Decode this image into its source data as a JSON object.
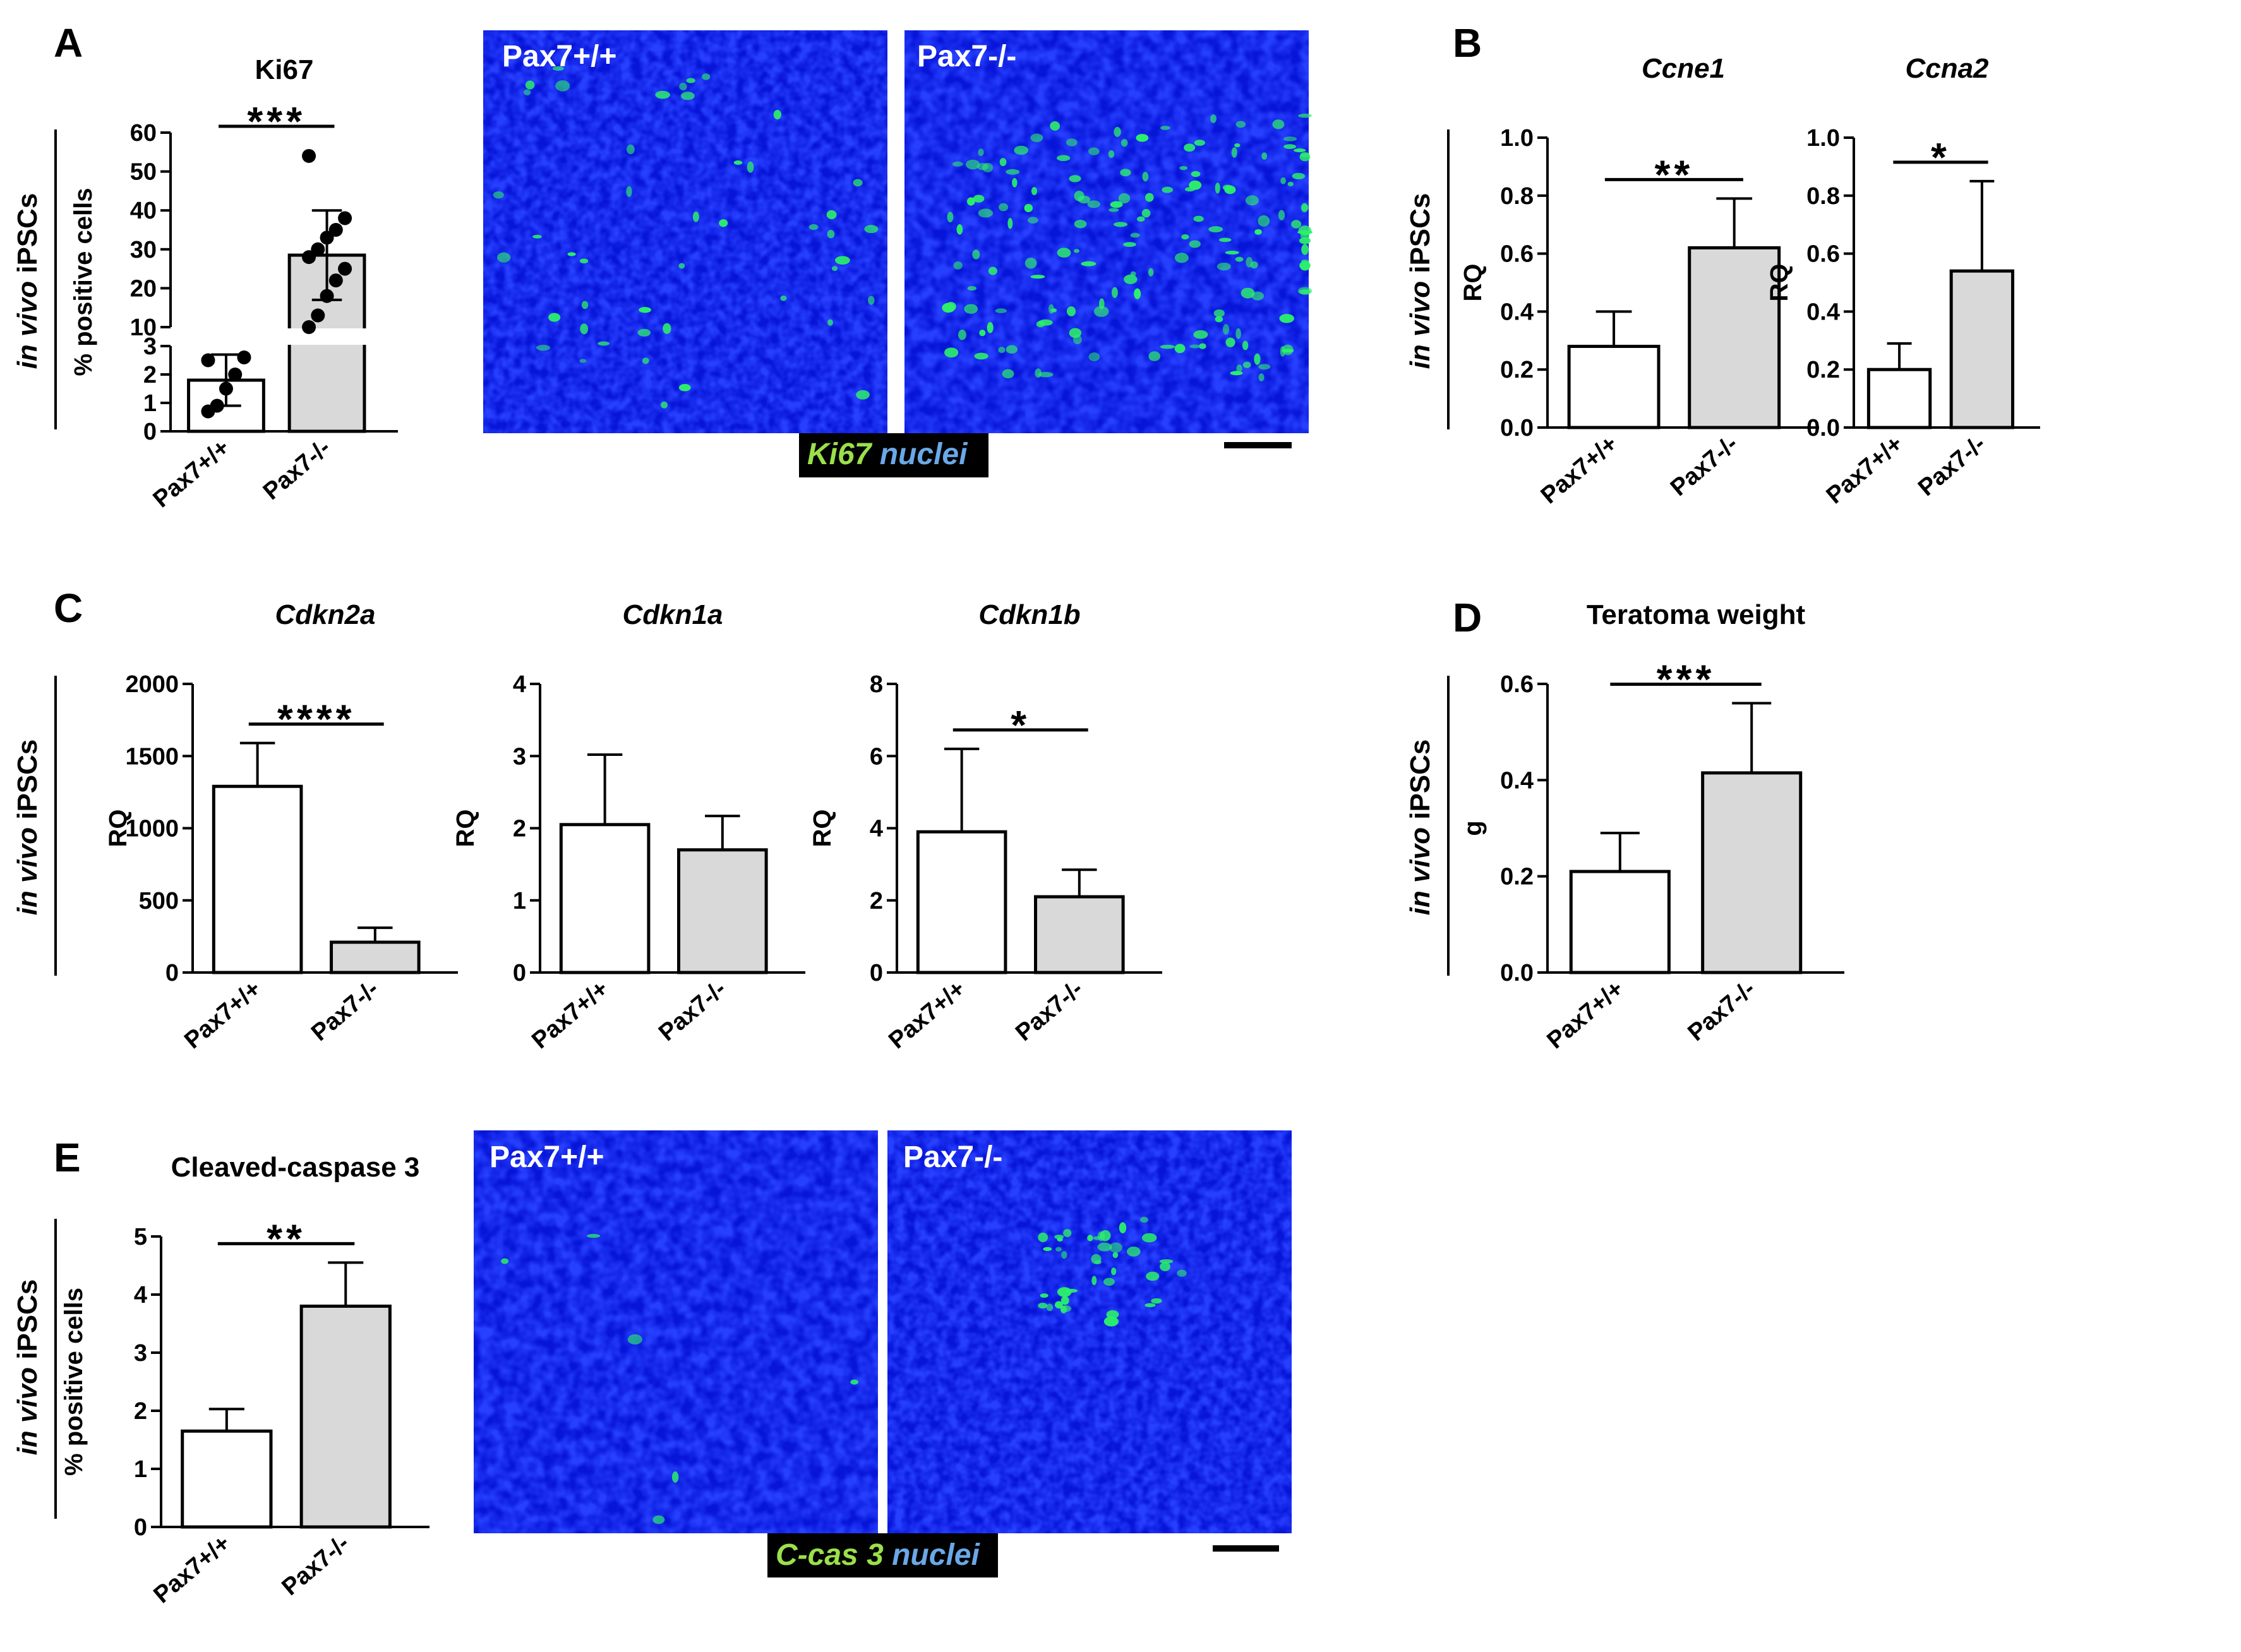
{
  "panels": [
    {
      "id": "A",
      "label": "A"
    },
    {
      "id": "B",
      "label": "B"
    },
    {
      "id": "C",
      "label": "C"
    },
    {
      "id": "D",
      "label": "D"
    },
    {
      "id": "E",
      "label": "E"
    }
  ],
  "side_label": {
    "italic": "in vivo",
    "normal": " iPSCs"
  },
  "micrographs": {
    "ki67": {
      "left_label": "Pax7+/+",
      "right_label": "Pax7-/-",
      "legend_marker": "Ki67",
      "legend_nuclei": "nuclei",
      "marker_color": "#9be04a",
      "nuclei_color": "#6aa8e8"
    },
    "ccas3": {
      "left_label": "Pax7+/+",
      "right_label": "Pax7-/-",
      "legend_marker": "C-cas 3",
      "legend_nuclei": "nuclei",
      "marker_color": "#9be04a",
      "nuclei_color": "#6aa8e8"
    }
  },
  "chart_data": [
    {
      "id": "A",
      "type": "bar",
      "title": "Ki67",
      "title_italic": false,
      "ylabel": "% positive cells",
      "categories": [
        "Pax7+/+",
        "Pax7-/-"
      ],
      "values": [
        1.8,
        28.5
      ],
      "errors": [
        0.9,
        11.5
      ],
      "broken_axis": {
        "lower": [
          0,
          3
        ],
        "upper": [
          10,
          60
        ],
        "lower_ticks": [
          0,
          1,
          2,
          3
        ],
        "upper_ticks": [
          10,
          20,
          30,
          40,
          50,
          60
        ]
      },
      "points": [
        [
          0.7,
          0.9,
          1.5,
          2.0,
          2.6,
          2.5
        ],
        [
          9,
          13,
          18,
          22,
          25,
          28,
          30,
          33,
          35,
          38,
          54
        ]
      ],
      "significance": "***",
      "colors": [
        "#ffffff",
        "#d9d9d9"
      ]
    },
    {
      "id": "B1",
      "type": "bar",
      "title": "Ccne1",
      "title_italic": true,
      "ylabel": "RQ",
      "categories": [
        "Pax7+/+",
        "Pax7-/-"
      ],
      "values": [
        0.28,
        0.62
      ],
      "errors": [
        0.12,
        0.17
      ],
      "ylim": [
        0,
        1.0
      ],
      "yticks": [
        "0.0",
        "0.2",
        "0.4",
        "0.6",
        "0.8",
        "1.0"
      ],
      "significance": "**",
      "colors": [
        "#ffffff",
        "#d9d9d9"
      ]
    },
    {
      "id": "B2",
      "type": "bar",
      "title": "Ccna2",
      "title_italic": true,
      "ylabel": "RQ",
      "categories": [
        "Pax7+/+",
        "Pax7-/-"
      ],
      "values": [
        0.2,
        0.54
      ],
      "errors": [
        0.09,
        0.31
      ],
      "ylim": [
        0,
        1.0
      ],
      "yticks": [
        "0.0",
        "0.2",
        "0.4",
        "0.6",
        "0.8",
        "1.0"
      ],
      "significance": "*",
      "colors": [
        "#ffffff",
        "#d9d9d9"
      ]
    },
    {
      "id": "C1",
      "type": "bar",
      "title": "Cdkn2a",
      "title_italic": true,
      "ylabel": "RQ",
      "categories": [
        "Pax7+/+",
        "Pax7-/-"
      ],
      "values": [
        1290,
        210
      ],
      "errors": [
        300,
        100
      ],
      "ylim": [
        0,
        2000
      ],
      "yticks": [
        "0",
        "500",
        "1000",
        "1500",
        "2000"
      ],
      "significance": "****",
      "colors": [
        "#ffffff",
        "#d9d9d9"
      ]
    },
    {
      "id": "C2",
      "type": "bar",
      "title": "Cdkn1a",
      "title_italic": true,
      "ylabel": "RQ",
      "categories": [
        "Pax7+/+",
        "Pax7-/-"
      ],
      "values": [
        2.05,
        1.7
      ],
      "errors": [
        0.97,
        0.47
      ],
      "ylim": [
        0,
        4
      ],
      "yticks": [
        "0",
        "1",
        "2",
        "3",
        "4"
      ],
      "significance": "",
      "colors": [
        "#ffffff",
        "#d9d9d9"
      ]
    },
    {
      "id": "C3",
      "type": "bar",
      "title": "Cdkn1b",
      "title_italic": true,
      "ylabel": "RQ",
      "categories": [
        "Pax7+/+",
        "Pax7-/-"
      ],
      "values": [
        3.9,
        2.1
      ],
      "errors": [
        2.3,
        0.75
      ],
      "ylim": [
        0,
        8
      ],
      "yticks": [
        "0",
        "2",
        "4",
        "6",
        "8"
      ],
      "significance": "*",
      "colors": [
        "#ffffff",
        "#d9d9d9"
      ]
    },
    {
      "id": "D",
      "type": "bar",
      "title": "Teratoma weight",
      "title_italic": false,
      "ylabel": "g",
      "categories": [
        "Pax7+/+",
        "Pax7-/-"
      ],
      "values": [
        0.21,
        0.415
      ],
      "errors": [
        0.08,
        0.145
      ],
      "ylim": [
        0,
        0.6
      ],
      "yticks": [
        "0.0",
        "0.2",
        "0.4",
        "0.6"
      ],
      "significance": "***",
      "colors": [
        "#ffffff",
        "#d9d9d9"
      ]
    },
    {
      "id": "E",
      "type": "bar",
      "title": "Cleaved-caspase 3",
      "title_italic": false,
      "ylabel": "% positive cells",
      "categories": [
        "Pax7+/+",
        "Pax7-/-"
      ],
      "values": [
        1.65,
        3.8
      ],
      "errors": [
        0.38,
        0.75
      ],
      "ylim": [
        0,
        5
      ],
      "yticks": [
        "0",
        "1",
        "2",
        "3",
        "4",
        "5"
      ],
      "significance": "**",
      "colors": [
        "#ffffff",
        "#d9d9d9"
      ]
    }
  ]
}
